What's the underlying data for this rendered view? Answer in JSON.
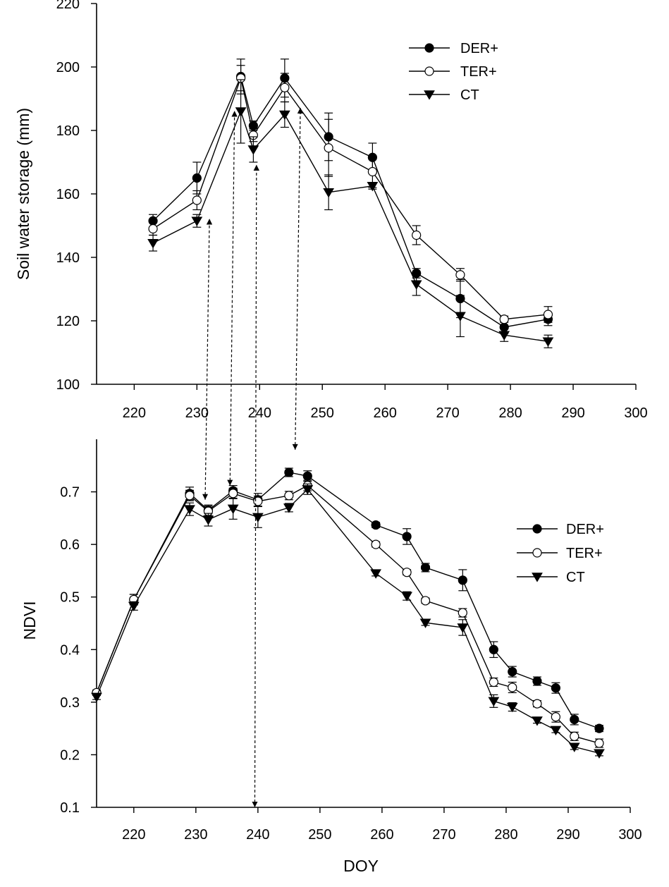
{
  "chart_data": [
    {
      "type": "line",
      "title": "",
      "xlabel": "",
      "ylabel": "Soil water storage (mm)",
      "xlim": [
        214,
        300
      ],
      "ylim": [
        100,
        220
      ],
      "xticks": [
        220,
        230,
        240,
        250,
        260,
        270,
        280,
        290,
        300
      ],
      "yticks": [
        100,
        120,
        140,
        160,
        180,
        200,
        220
      ],
      "xtick_labels": [
        "220",
        "230",
        "240",
        "250",
        "260",
        "270",
        "280",
        "290",
        "300"
      ],
      "ytick_labels": [
        "100",
        "120",
        "140",
        "160",
        "180",
        "200",
        "220"
      ],
      "grid": false,
      "legend_position": "top-right",
      "series": [
        {
          "name": "DER+",
          "marker": "filled-circle",
          "x": [
            223,
            230,
            237,
            239,
            244,
            251,
            258,
            265,
            272,
            279,
            286
          ],
          "y": [
            151.5,
            165,
            197,
            181.5,
            196.5,
            178,
            171.5,
            135,
            127,
            118,
            120.5
          ],
          "err": [
            2,
            5,
            5.5,
            1.5,
            6,
            7.5,
            4.5,
            1.5,
            6,
            2,
            2
          ]
        },
        {
          "name": "TER+",
          "marker": "open-circle",
          "x": [
            223,
            230,
            237,
            239,
            244,
            251,
            258,
            265,
            272,
            279,
            286
          ],
          "y": [
            149,
            158,
            196.5,
            178.5,
            193.5,
            174.5,
            167,
            147,
            134.5,
            120.5,
            122
          ],
          "err": [
            2,
            3,
            4,
            2,
            4.5,
            9,
            5,
            3,
            2,
            1,
            2.5
          ]
        },
        {
          "name": "CT",
          "marker": "filled-triangle-down",
          "x": [
            223,
            230,
            237,
            239,
            244,
            251,
            258,
            265,
            272,
            279,
            286
          ],
          "y": [
            144.5,
            151.5,
            186,
            174,
            185,
            160.5,
            162.5,
            131.5,
            121.5,
            115.5,
            113.5
          ],
          "err": [
            2.5,
            2,
            10,
            4,
            4,
            5.5,
            1,
            3.5,
            6.5,
            2,
            2
          ]
        }
      ]
    },
    {
      "type": "line",
      "title": "",
      "xlabel": "DOY",
      "ylabel": "NDVI",
      "xlim": [
        214,
        300
      ],
      "ylim": [
        0.1,
        0.8
      ],
      "xticks": [
        220,
        230,
        240,
        250,
        260,
        270,
        280,
        290,
        300
      ],
      "yticks": [
        0.1,
        0.2,
        0.3,
        0.4,
        0.5,
        0.6,
        0.7
      ],
      "xtick_labels": [
        "220",
        "230",
        "240",
        "250",
        "260",
        "270",
        "280",
        "290",
        "300"
      ],
      "ytick_labels": [
        "0.1",
        "0.2",
        "0.3",
        "0.4",
        "0.5",
        "0.6",
        "0.7"
      ],
      "grid": false,
      "legend_position": "right",
      "series": [
        {
          "name": "DER+",
          "marker": "filled-circle",
          "x": [
            214,
            220,
            229,
            232,
            236,
            240,
            245,
            248,
            259,
            264,
            267,
            273,
            278,
            281,
            285,
            288,
            291,
            295
          ],
          "y": [
            0.318,
            0.495,
            0.697,
            0.665,
            0.702,
            0.685,
            0.737,
            0.73,
            0.637,
            0.615,
            0.556,
            0.532,
            0.4,
            0.358,
            0.34,
            0.327,
            0.267,
            0.25
          ],
          "err": [
            0.005,
            0.01,
            0.012,
            0.01,
            0.01,
            0.012,
            0.008,
            0.01,
            0.005,
            0.015,
            0.008,
            0.02,
            0.015,
            0.01,
            0.008,
            0.01,
            0.01,
            0.006
          ]
        },
        {
          "name": "TER+",
          "marker": "open-circle",
          "x": [
            214,
            220,
            229,
            232,
            236,
            240,
            245,
            248,
            259,
            264,
            267,
            273,
            278,
            281,
            285,
            288,
            291,
            295
          ],
          "y": [
            0.318,
            0.495,
            0.693,
            0.663,
            0.697,
            0.682,
            0.693,
            0.712,
            0.6,
            0.547,
            0.493,
            0.47,
            0.338,
            0.328,
            0.297,
            0.272,
            0.235,
            0.222
          ],
          "err": [
            0.005,
            0.01,
            0.01,
            0.01,
            0.01,
            0.01,
            0.008,
            0.01,
            0.005,
            0.005,
            0.005,
            0.008,
            0.008,
            0.01,
            0.006,
            0.01,
            0.008,
            0.008
          ]
        },
        {
          "name": "CT",
          "marker": "filled-triangle-down",
          "x": [
            214,
            220,
            229,
            232,
            236,
            240,
            245,
            248,
            259,
            264,
            267,
            273,
            278,
            281,
            285,
            288,
            291,
            295
          ],
          "y": [
            0.31,
            0.483,
            0.667,
            0.647,
            0.668,
            0.652,
            0.67,
            0.705,
            0.545,
            0.502,
            0.451,
            0.442,
            0.302,
            0.291,
            0.265,
            0.247,
            0.215,
            0.203
          ],
          "err": [
            0.005,
            0.008,
            0.012,
            0.012,
            0.02,
            0.02,
            0.008,
            0.01,
            0.005,
            0.008,
            0.005,
            0.015,
            0.012,
            0.008,
            0.005,
            0.005,
            0.005,
            0.005
          ]
        }
      ]
    }
  ],
  "arrows": [
    {
      "from": [
        232,
        152
      ],
      "to": [
        231.5,
        0.685
      ]
    },
    {
      "from": [
        236,
        186
      ],
      "to": [
        235.5,
        0.712
      ]
    },
    {
      "from": [
        239.5,
        169
      ],
      "to": [
        239.5,
        0.1
      ]
    },
    {
      "from": [
        246.5,
        187
      ],
      "to": [
        246,
        0.78
      ]
    }
  ]
}
